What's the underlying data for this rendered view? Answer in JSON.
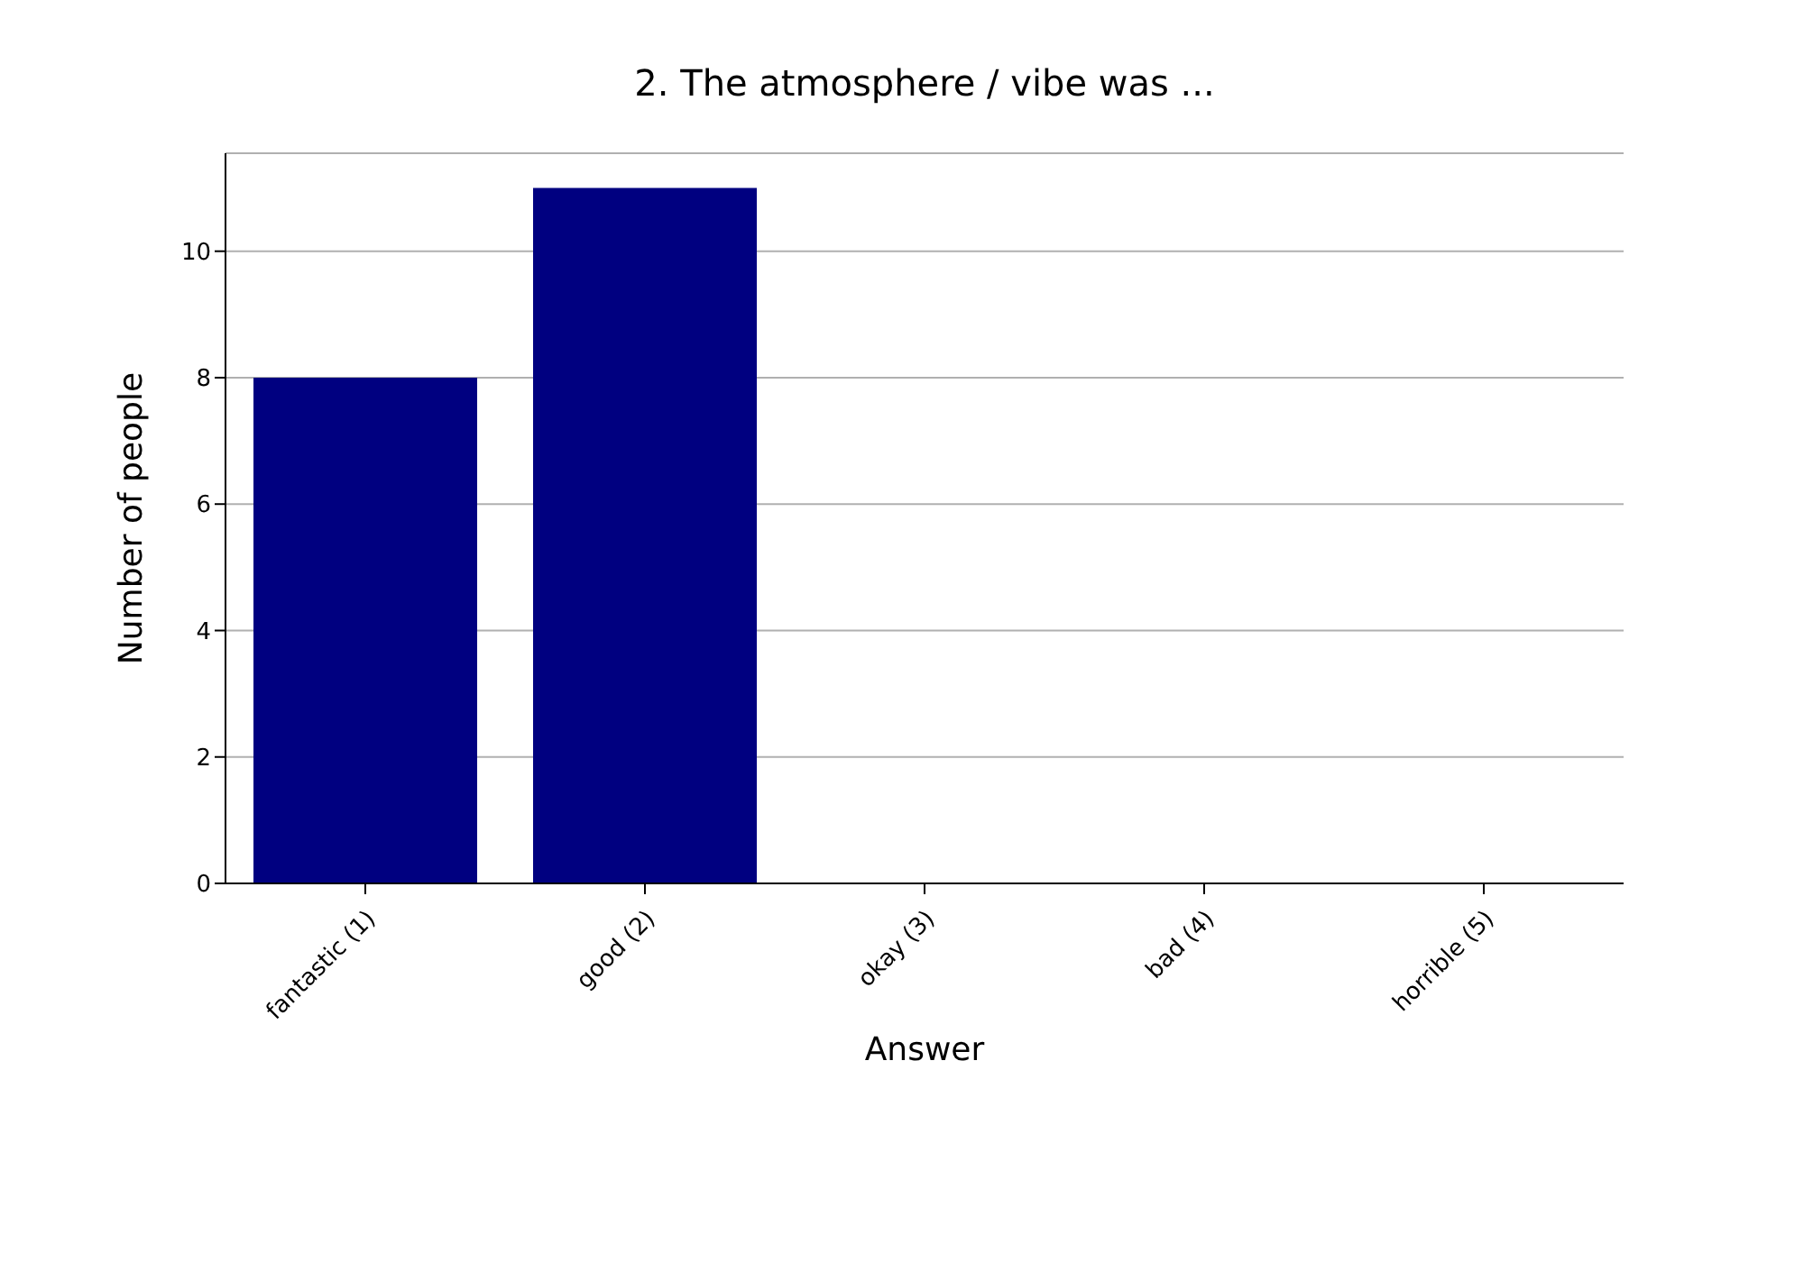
{
  "chart_data": {
    "type": "bar",
    "title": "2. The atmosphere / vibe was ...",
    "xlabel": "Answer",
    "ylabel": "Number of people",
    "categories": [
      "fantastic (1)",
      "good (2)",
      "okay (3)",
      "bad (4)",
      "horrible (5)"
    ],
    "values": [
      8,
      11,
      0,
      0,
      0
    ],
    "color": "#000080",
    "ylim": [
      0,
      11.55
    ],
    "yticks": [
      0,
      2,
      4,
      6,
      8,
      10
    ],
    "grid": "y"
  }
}
